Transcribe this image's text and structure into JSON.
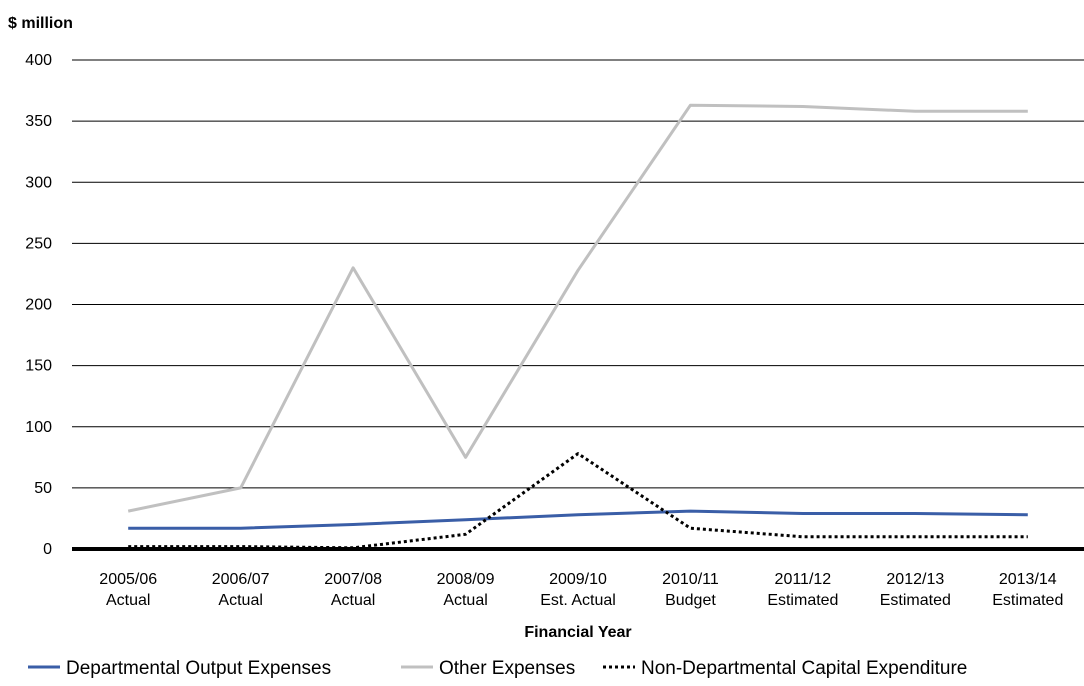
{
  "chart_data": {
    "type": "line",
    "ylabel": "$ million",
    "xlabel": "Financial Year",
    "ylim": [
      0,
      400
    ],
    "yticks": [
      "0",
      "50",
      "100",
      "150",
      "200",
      "250",
      "300",
      "350",
      "400"
    ],
    "categories": [
      [
        "2005/06",
        "Actual"
      ],
      [
        "2006/07",
        "Actual"
      ],
      [
        "2007/08",
        "Actual"
      ],
      [
        "2008/09",
        "Actual"
      ],
      [
        "2009/10",
        "Est. Actual"
      ],
      [
        "2010/11",
        "Budget"
      ],
      [
        "2011/12",
        "Estimated"
      ],
      [
        "2012/13",
        "Estimated"
      ],
      [
        "2013/14",
        "Estimated"
      ]
    ],
    "series": [
      {
        "name": "Departmental Output Expenses",
        "color": "#3a5ea7",
        "style": "solid",
        "values": [
          17,
          17,
          20,
          24,
          28,
          31,
          29,
          29,
          28
        ]
      },
      {
        "name": "Other Expenses",
        "color": "#c0c0c0",
        "style": "solid",
        "values": [
          31,
          50,
          230,
          75,
          228,
          363,
          362,
          358,
          358
        ]
      },
      {
        "name": "Non-Departmental Capital Expenditure",
        "color": "#000000",
        "style": "dotted",
        "values": [
          2,
          2,
          1,
          12,
          78,
          17,
          10,
          10,
          10
        ]
      }
    ],
    "grid": true,
    "legend_position": "bottom"
  }
}
